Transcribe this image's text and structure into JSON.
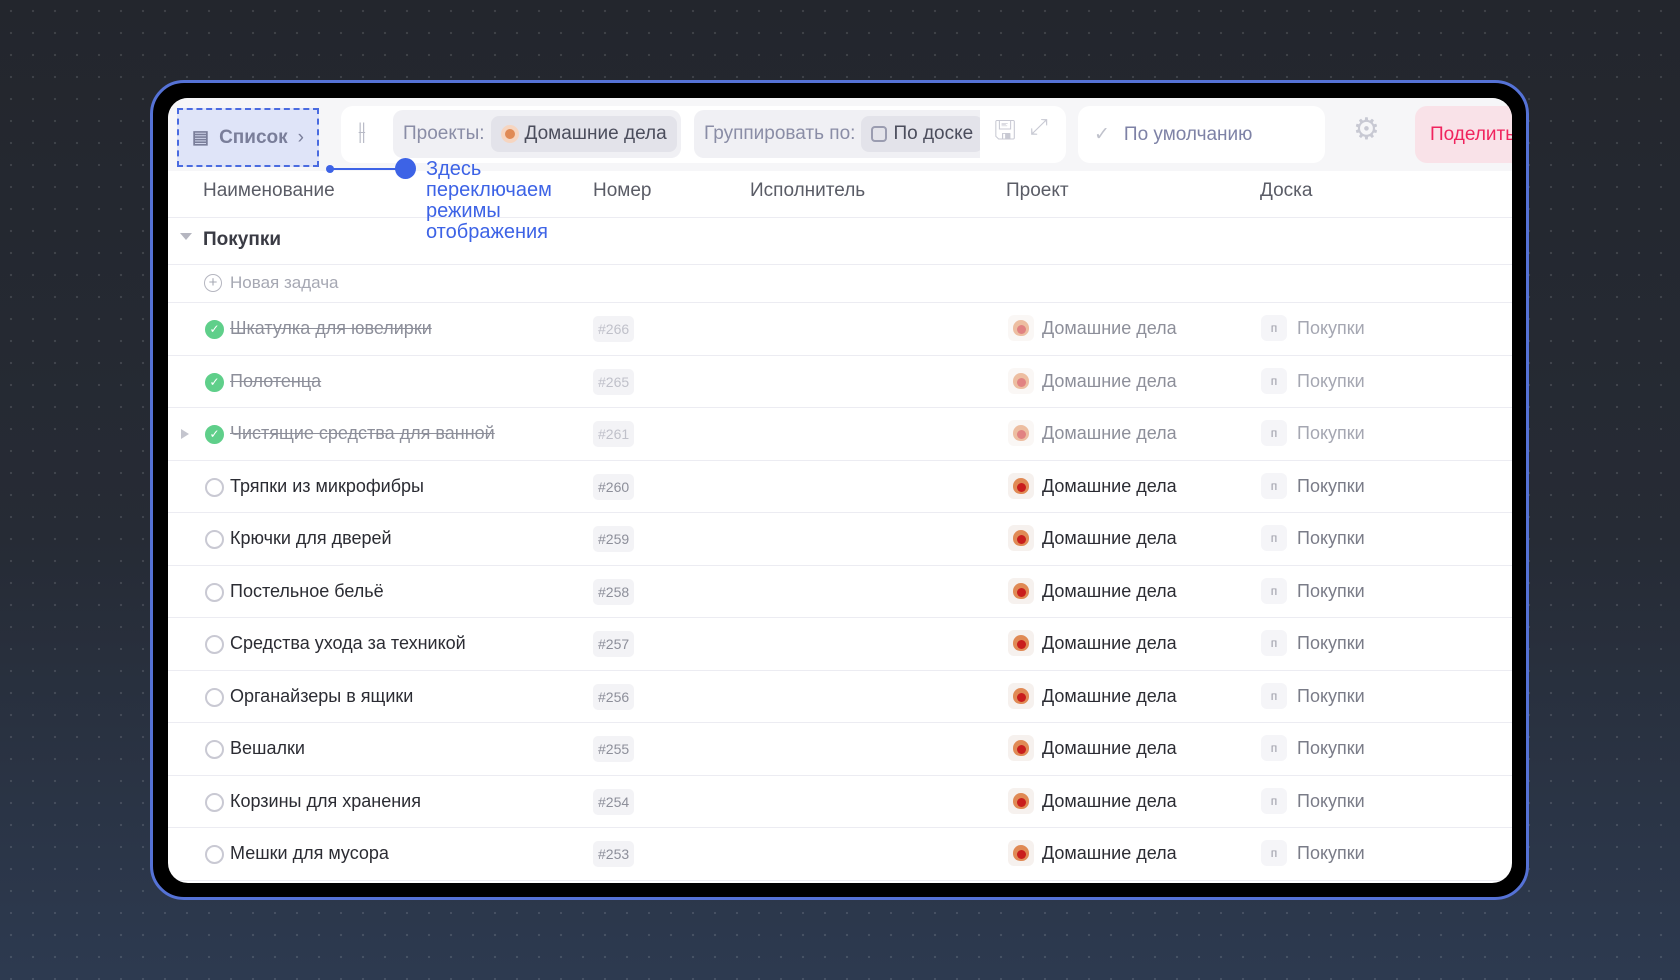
{
  "toolbar": {
    "view_label": "Список",
    "projects_label": "Проекты:",
    "projects_value": "Домашние дела",
    "group_label": "Группировать по:",
    "group_value": "По доске",
    "sort_value": "По умолчанию",
    "share_label": "Поделиться"
  },
  "annotation": "Здесь переключаем режимы отображения",
  "columns": [
    "Наименование",
    "Номер",
    "Исполнитель",
    "Проект",
    "Доска"
  ],
  "group": {
    "title": "Покупки",
    "new_task": "Новая задача"
  },
  "colors": {
    "accent": "#3d63e6",
    "done": "#5fcf8a",
    "share": "#f0245e"
  },
  "rows": [
    {
      "name": "Шкатулка для ювелирки",
      "number": "#266",
      "project": "Домашние дела",
      "board_icon": "п",
      "board": "Покупки",
      "done": true
    },
    {
      "name": "Полотенца",
      "number": "#265",
      "project": "Домашние дела",
      "board_icon": "п",
      "board": "Покупки",
      "done": true
    },
    {
      "name": "Чистящие средства для ванной",
      "number": "#261",
      "project": "Домашние дела",
      "board_icon": "п",
      "board": "Покупки",
      "done": true,
      "expandable": true
    },
    {
      "name": "Тряпки из микрофибры",
      "number": "#260",
      "project": "Домашние дела",
      "board_icon": "п",
      "board": "Покупки",
      "done": false
    },
    {
      "name": "Крючки для дверей",
      "number": "#259",
      "project": "Домашние дела",
      "board_icon": "п",
      "board": "Покупки",
      "done": false
    },
    {
      "name": "Постельное бельё",
      "number": "#258",
      "project": "Домашние дела",
      "board_icon": "п",
      "board": "Покупки",
      "done": false
    },
    {
      "name": "Средства ухода за техникой",
      "number": "#257",
      "project": "Домашние дела",
      "board_icon": "п",
      "board": "Покупки",
      "done": false
    },
    {
      "name": "Органайзеры в ящики",
      "number": "#256",
      "project": "Домашние дела",
      "board_icon": "п",
      "board": "Покупки",
      "done": false
    },
    {
      "name": "Вешалки",
      "number": "#255",
      "project": "Домашние дела",
      "board_icon": "п",
      "board": "Покупки",
      "done": false
    },
    {
      "name": "Корзины для хранения",
      "number": "#254",
      "project": "Домашние дела",
      "board_icon": "п",
      "board": "Покупки",
      "done": false
    },
    {
      "name": "Мешки для мусора",
      "number": "#253",
      "project": "Домашние дела",
      "board_icon": "п",
      "board": "Покупки",
      "done": false
    }
  ]
}
